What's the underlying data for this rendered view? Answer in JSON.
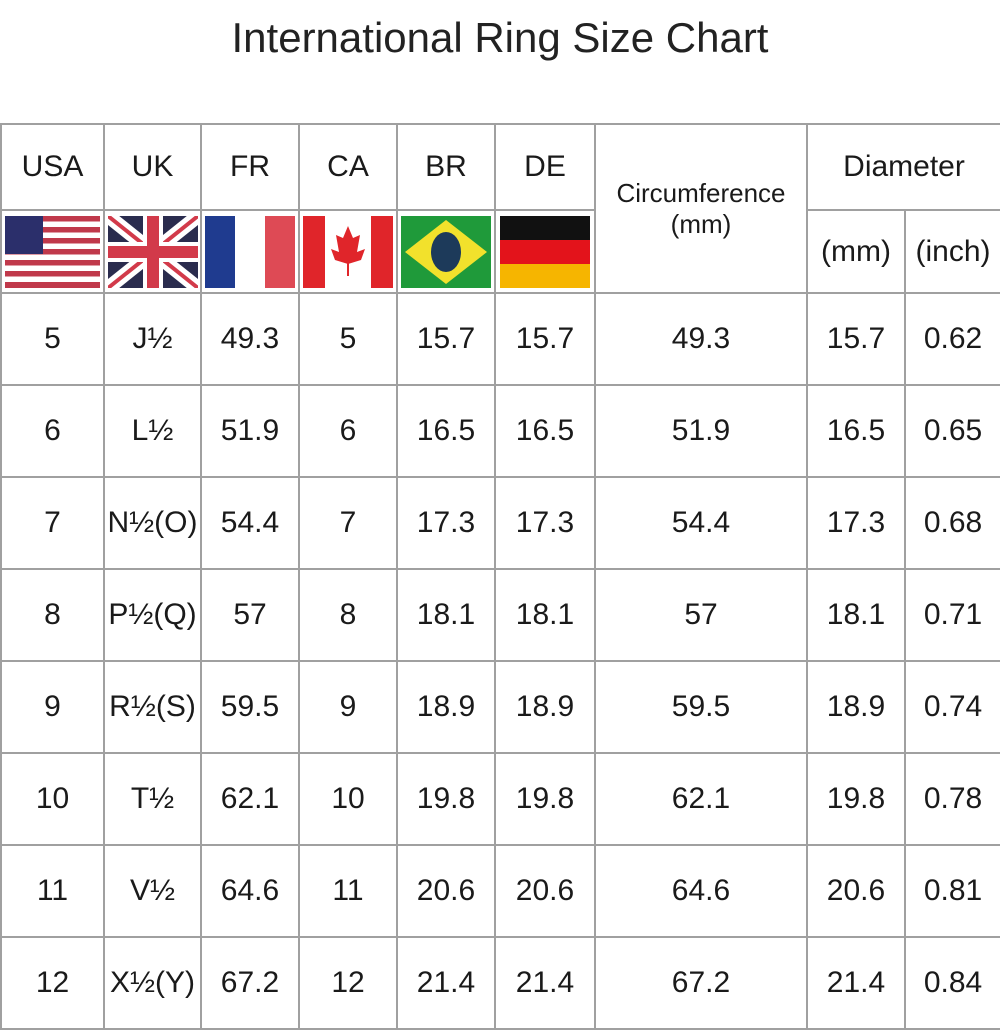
{
  "title": "International Ring Size Chart",
  "headers": {
    "usa": "USA",
    "uk": "UK",
    "fr": "FR",
    "ca": "CA",
    "br": "BR",
    "de": "DE",
    "circ": "Circumference",
    "circ_unit": "(mm)",
    "diameter": "Diameter",
    "dia_mm": "(mm)",
    "dia_inch": "(inch)"
  },
  "flags": [
    "us-flag",
    "uk-flag",
    "france-flag",
    "canada-flag",
    "brazil-flag",
    "germany-flag"
  ],
  "rows": [
    [
      "5",
      "J½",
      "49.3",
      "5",
      "15.7",
      "15.7",
      "49.3",
      "15.7",
      "0.62"
    ],
    [
      "6",
      "L½",
      "51.9",
      "6",
      "16.5",
      "16.5",
      "51.9",
      "16.5",
      "0.65"
    ],
    [
      "7",
      "N½(O)",
      "54.4",
      "7",
      "17.3",
      "17.3",
      "54.4",
      "17.3",
      "0.68"
    ],
    [
      "8",
      "P½(Q)",
      "57",
      "8",
      "18.1",
      "18.1",
      "57",
      "18.1",
      "0.71"
    ],
    [
      "9",
      "R½(S)",
      "59.5",
      "9",
      "18.9",
      "18.9",
      "59.5",
      "18.9",
      "0.74"
    ],
    [
      "10",
      "T½",
      "62.1",
      "10",
      "19.8",
      "19.8",
      "62.1",
      "19.8",
      "0.78"
    ],
    [
      "11",
      "V½",
      "64.6",
      "11",
      "20.6",
      "20.6",
      "64.6",
      "20.6",
      "0.81"
    ],
    [
      "12",
      "X½(Y)",
      "67.2",
      "12",
      "21.4",
      "21.4",
      "67.2",
      "21.4",
      "0.84"
    ]
  ]
}
